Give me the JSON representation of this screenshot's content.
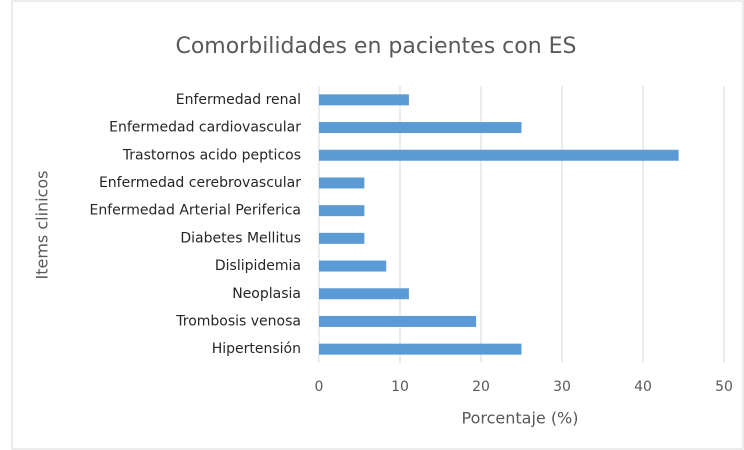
{
  "chart_data": {
    "type": "bar",
    "orientation": "horizontal",
    "title": "Comorbilidades en pacientes con ES",
    "x_label": "Porcentaje (%)",
    "y_label": "Items clinicos",
    "categories": [
      "Enfermedad renal",
      "Enfermedad cardiovascular",
      "Trastornos acido pepticos",
      "Enfermedad cerebrovascular",
      "Enfermedad Arterial Periferica",
      "Diabetes Mellitus",
      "Dislipidemia",
      "Neoplasia",
      "Trombosis venosa",
      "Hipertensión"
    ],
    "values": [
      11.1,
      25,
      44.4,
      5.6,
      5.6,
      5.6,
      8.3,
      11.1,
      19.4,
      25
    ],
    "color": "#5b9bd5",
    "xlim": [
      0,
      50
    ],
    "xticks": [
      0,
      10,
      20,
      30,
      40,
      50
    ],
    "grid": true
  }
}
